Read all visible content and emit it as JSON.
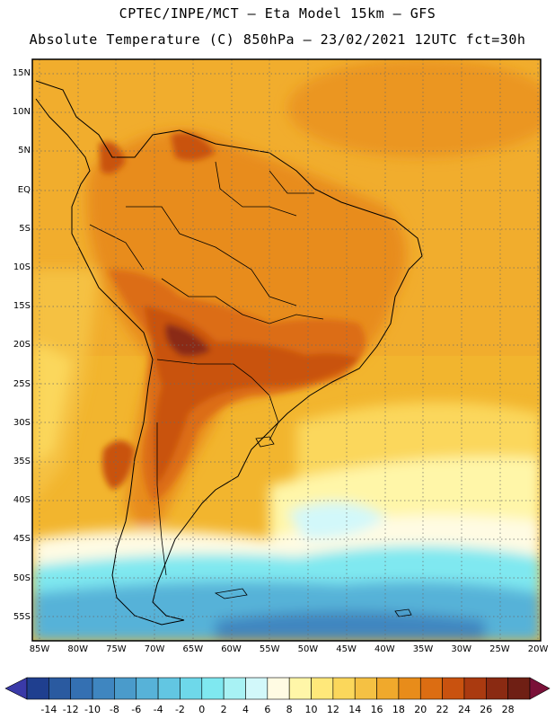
{
  "header": {
    "title_line1": "CPTEC/INPE/MCT –  Eta Model 15km – GFS",
    "title_line2": "Absolute Temperature (C) 850hPa – 23/02/2021 12UTC fct=30h"
  },
  "map": {
    "lat_labels": [
      "15N",
      "10N",
      "5N",
      "EQ",
      "5S",
      "10S",
      "15S",
      "20S",
      "25S",
      "30S",
      "35S",
      "40S",
      "45S",
      "50S",
      "55S"
    ],
    "lon_labels": [
      "85W",
      "80W",
      "75W",
      "70W",
      "65W",
      "60W",
      "55W",
      "50W",
      "45W",
      "40W",
      "35W",
      "30W",
      "25W",
      "20W"
    ]
  },
  "colorbar": {
    "ticks": [
      "-14",
      "-12",
      "-10",
      "-8",
      "-6",
      "-4",
      "-2",
      "0",
      "2",
      "4",
      "6",
      "8",
      "10",
      "12",
      "14",
      "16",
      "18",
      "20",
      "22",
      "24",
      "26",
      "28"
    ],
    "colors": [
      "#1f3f8f",
      "#2a5aa0",
      "#3470b2",
      "#3f86c0",
      "#4a9bcb",
      "#57b2d8",
      "#62c6e2",
      "#6ed8ea",
      "#7fe8f0",
      "#a8f2f4",
      "#d2f8fa",
      "#fffbe3",
      "#fff6a8",
      "#ffe87a",
      "#fbd75b",
      "#f5c143",
      "#f0a92c",
      "#e88c1a",
      "#dc6d12",
      "#c9520f",
      "#aa3a10",
      "#8a2a12",
      "#6f1f14"
    ],
    "low_arrow_color": "#3a3aa8",
    "high_arrow_color": "#7a1038"
  }
}
